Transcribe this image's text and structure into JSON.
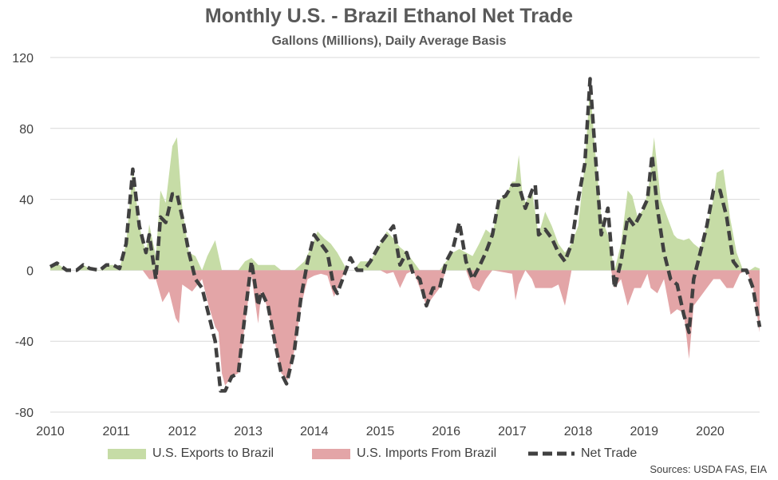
{
  "title": "Monthly U.S. - Brazil Ethanol Net Trade",
  "subtitle": "Gallons (Millions), Daily Average Basis",
  "source": "Sources: USDA FAS, EIA",
  "chart_data": {
    "type": "area",
    "title": "Monthly U.S. - Brazil Ethanol Net Trade",
    "subtitle": "Gallons (Millions), Daily Average Basis",
    "ylim": [
      -80,
      120
    ],
    "y_ticks": [
      -80,
      -40,
      0,
      40,
      80,
      120
    ],
    "x_ticks": [
      "2010",
      "2011",
      "2012",
      "2013",
      "2014",
      "2015",
      "2016",
      "2017",
      "2018",
      "2019",
      "2020"
    ],
    "xlim": [
      2010,
      2020.75
    ],
    "grid": true,
    "legend_position": "bottom",
    "series": [
      {
        "name": "U.S. Exports to Brazil",
        "type": "area",
        "color": "#c6dca6",
        "points": [
          [
            2010.0,
            2
          ],
          [
            2010.1,
            4
          ],
          [
            2010.25,
            0
          ],
          [
            2010.4,
            0
          ],
          [
            2010.5,
            3
          ],
          [
            2010.6,
            1
          ],
          [
            2010.75,
            0
          ],
          [
            2010.85,
            3
          ],
          [
            2010.95,
            3
          ],
          [
            2011.05,
            1
          ],
          [
            2011.15,
            15
          ],
          [
            2011.25,
            57
          ],
          [
            2011.35,
            25
          ],
          [
            2011.45,
            10
          ],
          [
            2011.5,
            26
          ],
          [
            2011.6,
            8
          ],
          [
            2011.67,
            45
          ],
          [
            2011.75,
            38
          ],
          [
            2011.85,
            70
          ],
          [
            2011.92,
            75
          ],
          [
            2012.0,
            35
          ],
          [
            2012.1,
            10
          ],
          [
            2012.2,
            8
          ],
          [
            2012.3,
            0
          ],
          [
            2012.38,
            8
          ],
          [
            2012.5,
            17
          ],
          [
            2012.6,
            0
          ],
          [
            2012.75,
            0
          ],
          [
            2012.85,
            0
          ],
          [
            2012.95,
            5
          ],
          [
            2013.05,
            7
          ],
          [
            2013.15,
            3
          ],
          [
            2013.3,
            3
          ],
          [
            2013.4,
            3
          ],
          [
            2013.5,
            0
          ],
          [
            2013.7,
            0
          ],
          [
            2013.85,
            5
          ],
          [
            2013.98,
            15
          ],
          [
            2014.05,
            22
          ],
          [
            2014.15,
            18
          ],
          [
            2014.25,
            15
          ],
          [
            2014.35,
            10
          ],
          [
            2014.5,
            0
          ],
          [
            2014.6,
            0
          ],
          [
            2014.7,
            5
          ],
          [
            2014.85,
            5
          ],
          [
            2015.0,
            15
          ],
          [
            2015.1,
            22
          ],
          [
            2015.2,
            18
          ],
          [
            2015.3,
            13
          ],
          [
            2015.4,
            10
          ],
          [
            2015.5,
            5
          ],
          [
            2015.6,
            0
          ],
          [
            2015.75,
            0
          ],
          [
            2015.9,
            0
          ],
          [
            2016.0,
            5
          ],
          [
            2016.1,
            10
          ],
          [
            2016.2,
            12
          ],
          [
            2016.3,
            10
          ],
          [
            2016.4,
            8
          ],
          [
            2016.5,
            15
          ],
          [
            2016.6,
            23
          ],
          [
            2016.7,
            20
          ],
          [
            2016.8,
            40
          ],
          [
            2016.9,
            42
          ],
          [
            2017.0,
            50
          ],
          [
            2017.05,
            50
          ],
          [
            2017.1,
            65
          ],
          [
            2017.15,
            45
          ],
          [
            2017.2,
            38
          ],
          [
            2017.3,
            45
          ],
          [
            2017.4,
            20
          ],
          [
            2017.5,
            33
          ],
          [
            2017.6,
            25
          ],
          [
            2017.7,
            15
          ],
          [
            2017.8,
            10
          ],
          [
            2017.9,
            15
          ],
          [
            2018.0,
            25
          ],
          [
            2018.1,
            60
          ],
          [
            2018.18,
            105
          ],
          [
            2018.25,
            70
          ],
          [
            2018.35,
            30
          ],
          [
            2018.45,
            20
          ],
          [
            2018.55,
            0
          ],
          [
            2018.65,
            15
          ],
          [
            2018.75,
            45
          ],
          [
            2018.82,
            42
          ],
          [
            2018.9,
            30
          ],
          [
            2019.0,
            35
          ],
          [
            2019.08,
            50
          ],
          [
            2019.15,
            75
          ],
          [
            2019.25,
            40
          ],
          [
            2019.35,
            30
          ],
          [
            2019.45,
            20
          ],
          [
            2019.5,
            18
          ],
          [
            2019.6,
            17
          ],
          [
            2019.68,
            18
          ],
          [
            2019.75,
            15
          ],
          [
            2019.85,
            12
          ],
          [
            2019.95,
            25
          ],
          [
            2020.05,
            40
          ],
          [
            2020.1,
            55
          ],
          [
            2020.2,
            57
          ],
          [
            2020.3,
            30
          ],
          [
            2020.4,
            10
          ],
          [
            2020.5,
            0
          ],
          [
            2020.6,
            0
          ],
          [
            2020.68,
            2
          ],
          [
            2020.75,
            1
          ]
        ]
      },
      {
        "name": "U.S. Imports From Brazil",
        "type": "area",
        "color": "#e3a5a7",
        "points": [
          [
            2010.0,
            0
          ],
          [
            2011.4,
            0
          ],
          [
            2011.5,
            -5
          ],
          [
            2011.6,
            -5
          ],
          [
            2011.7,
            -18
          ],
          [
            2011.8,
            -12
          ],
          [
            2011.9,
            -27
          ],
          [
            2011.95,
            -30
          ],
          [
            2012.0,
            -8
          ],
          [
            2012.15,
            -12
          ],
          [
            2012.3,
            -5
          ],
          [
            2012.4,
            -20
          ],
          [
            2012.5,
            -32
          ],
          [
            2012.55,
            -35
          ],
          [
            2012.6,
            -58
          ],
          [
            2012.65,
            -65
          ],
          [
            2012.75,
            -60
          ],
          [
            2012.85,
            -58
          ],
          [
            2012.95,
            -30
          ],
          [
            2013.05,
            -3
          ],
          [
            2013.15,
            -30
          ],
          [
            2013.2,
            -12
          ],
          [
            2013.3,
            -22
          ],
          [
            2013.4,
            -40
          ],
          [
            2013.5,
            -58
          ],
          [
            2013.6,
            -62
          ],
          [
            2013.7,
            -45
          ],
          [
            2013.8,
            -20
          ],
          [
            2013.9,
            -5
          ],
          [
            2014.0,
            -3
          ],
          [
            2014.1,
            -2
          ],
          [
            2014.2,
            -3
          ],
          [
            2014.3,
            -15
          ],
          [
            2014.4,
            -5
          ],
          [
            2014.5,
            0
          ],
          [
            2015.0,
            0
          ],
          [
            2015.1,
            -2
          ],
          [
            2015.2,
            -1
          ],
          [
            2015.3,
            -10
          ],
          [
            2015.4,
            -2
          ],
          [
            2015.5,
            0
          ],
          [
            2015.6,
            -10
          ],
          [
            2015.7,
            -20
          ],
          [
            2015.8,
            -15
          ],
          [
            2015.9,
            -10
          ],
          [
            2016.0,
            0
          ],
          [
            2016.3,
            0
          ],
          [
            2016.4,
            -10
          ],
          [
            2016.5,
            -12
          ],
          [
            2016.6,
            -5
          ],
          [
            2016.7,
            0
          ],
          [
            2017.0,
            -2
          ],
          [
            2017.05,
            -17
          ],
          [
            2017.1,
            -8
          ],
          [
            2017.2,
            0
          ],
          [
            2017.3,
            -5
          ],
          [
            2017.35,
            -10
          ],
          [
            2017.5,
            -10
          ],
          [
            2017.6,
            -10
          ],
          [
            2017.7,
            -8
          ],
          [
            2017.8,
            -20
          ],
          [
            2017.9,
            0
          ],
          [
            2018.5,
            0
          ],
          [
            2018.55,
            -10
          ],
          [
            2018.65,
            -5
          ],
          [
            2018.75,
            -20
          ],
          [
            2018.85,
            -10
          ],
          [
            2018.95,
            -10
          ],
          [
            2019.05,
            -2
          ],
          [
            2019.1,
            -10
          ],
          [
            2019.2,
            -13
          ],
          [
            2019.3,
            -5
          ],
          [
            2019.4,
            -25
          ],
          [
            2019.5,
            -22
          ],
          [
            2019.6,
            -24
          ],
          [
            2019.68,
            -50
          ],
          [
            2019.75,
            -20
          ],
          [
            2019.85,
            -15
          ],
          [
            2019.95,
            -10
          ],
          [
            2020.05,
            -5
          ],
          [
            2020.15,
            -5
          ],
          [
            2020.25,
            -10
          ],
          [
            2020.35,
            -10
          ],
          [
            2020.45,
            -2
          ],
          [
            2020.55,
            0
          ],
          [
            2020.65,
            -10
          ],
          [
            2020.75,
            -35
          ]
        ]
      },
      {
        "name": "Net Trade",
        "type": "line",
        "dash": true,
        "color": "#404040",
        "points": [
          [
            2010.0,
            2
          ],
          [
            2010.1,
            4
          ],
          [
            2010.25,
            0
          ],
          [
            2010.4,
            0
          ],
          [
            2010.5,
            3
          ],
          [
            2010.6,
            1
          ],
          [
            2010.75,
            0
          ],
          [
            2010.85,
            3
          ],
          [
            2010.95,
            3
          ],
          [
            2011.05,
            1
          ],
          [
            2011.15,
            15
          ],
          [
            2011.25,
            57
          ],
          [
            2011.35,
            25
          ],
          [
            2011.45,
            10
          ],
          [
            2011.5,
            20
          ],
          [
            2011.6,
            -5
          ],
          [
            2011.67,
            30
          ],
          [
            2011.75,
            27
          ],
          [
            2011.85,
            43
          ],
          [
            2011.92,
            43
          ],
          [
            2012.0,
            30
          ],
          [
            2012.1,
            10
          ],
          [
            2012.2,
            -5
          ],
          [
            2012.3,
            -10
          ],
          [
            2012.4,
            -25
          ],
          [
            2012.5,
            -40
          ],
          [
            2012.58,
            -68
          ],
          [
            2012.65,
            -68
          ],
          [
            2012.75,
            -60
          ],
          [
            2012.85,
            -58
          ],
          [
            2012.95,
            -25
          ],
          [
            2013.05,
            5
          ],
          [
            2013.15,
            -20
          ],
          [
            2013.2,
            -12
          ],
          [
            2013.3,
            -20
          ],
          [
            2013.4,
            -40
          ],
          [
            2013.5,
            -58
          ],
          [
            2013.58,
            -64
          ],
          [
            2013.7,
            -45
          ],
          [
            2013.8,
            -15
          ],
          [
            2013.9,
            5
          ],
          [
            2014.0,
            20
          ],
          [
            2014.1,
            15
          ],
          [
            2014.2,
            10
          ],
          [
            2014.3,
            -10
          ],
          [
            2014.35,
            -13
          ],
          [
            2014.45,
            -3
          ],
          [
            2014.55,
            7
          ],
          [
            2014.65,
            0
          ],
          [
            2014.75,
            0
          ],
          [
            2014.85,
            5
          ],
          [
            2015.0,
            15
          ],
          [
            2015.1,
            20
          ],
          [
            2015.2,
            25
          ],
          [
            2015.3,
            3
          ],
          [
            2015.4,
            10
          ],
          [
            2015.5,
            -2
          ],
          [
            2015.6,
            -5
          ],
          [
            2015.7,
            -20
          ],
          [
            2015.8,
            -10
          ],
          [
            2015.9,
            -10
          ],
          [
            2016.0,
            5
          ],
          [
            2016.1,
            12
          ],
          [
            2016.2,
            27
          ],
          [
            2016.3,
            5
          ],
          [
            2016.4,
            -5
          ],
          [
            2016.5,
            2
          ],
          [
            2016.6,
            10
          ],
          [
            2016.7,
            20
          ],
          [
            2016.8,
            40
          ],
          [
            2016.9,
            42
          ],
          [
            2017.0,
            48
          ],
          [
            2017.1,
            48
          ],
          [
            2017.2,
            35
          ],
          [
            2017.3,
            45
          ],
          [
            2017.35,
            48
          ],
          [
            2017.4,
            20
          ],
          [
            2017.5,
            23
          ],
          [
            2017.6,
            18
          ],
          [
            2017.7,
            10
          ],
          [
            2017.8,
            5
          ],
          [
            2017.9,
            15
          ],
          [
            2018.0,
            40
          ],
          [
            2018.1,
            60
          ],
          [
            2018.18,
            108
          ],
          [
            2018.25,
            70
          ],
          [
            2018.35,
            20
          ],
          [
            2018.45,
            35
          ],
          [
            2018.55,
            -10
          ],
          [
            2018.65,
            5
          ],
          [
            2018.75,
            30
          ],
          [
            2018.85,
            25
          ],
          [
            2018.95,
            32
          ],
          [
            2019.05,
            40
          ],
          [
            2019.12,
            65
          ],
          [
            2019.2,
            35
          ],
          [
            2019.3,
            10
          ],
          [
            2019.4,
            -5
          ],
          [
            2019.5,
            -8
          ],
          [
            2019.6,
            -25
          ],
          [
            2019.68,
            -35
          ],
          [
            2019.75,
            -5
          ],
          [
            2019.85,
            10
          ],
          [
            2019.95,
            25
          ],
          [
            2020.05,
            45
          ],
          [
            2020.15,
            45
          ],
          [
            2020.25,
            30
          ],
          [
            2020.35,
            5
          ],
          [
            2020.45,
            0
          ],
          [
            2020.55,
            0
          ],
          [
            2020.65,
            -10
          ],
          [
            2020.75,
            -32
          ]
        ]
      }
    ]
  }
}
